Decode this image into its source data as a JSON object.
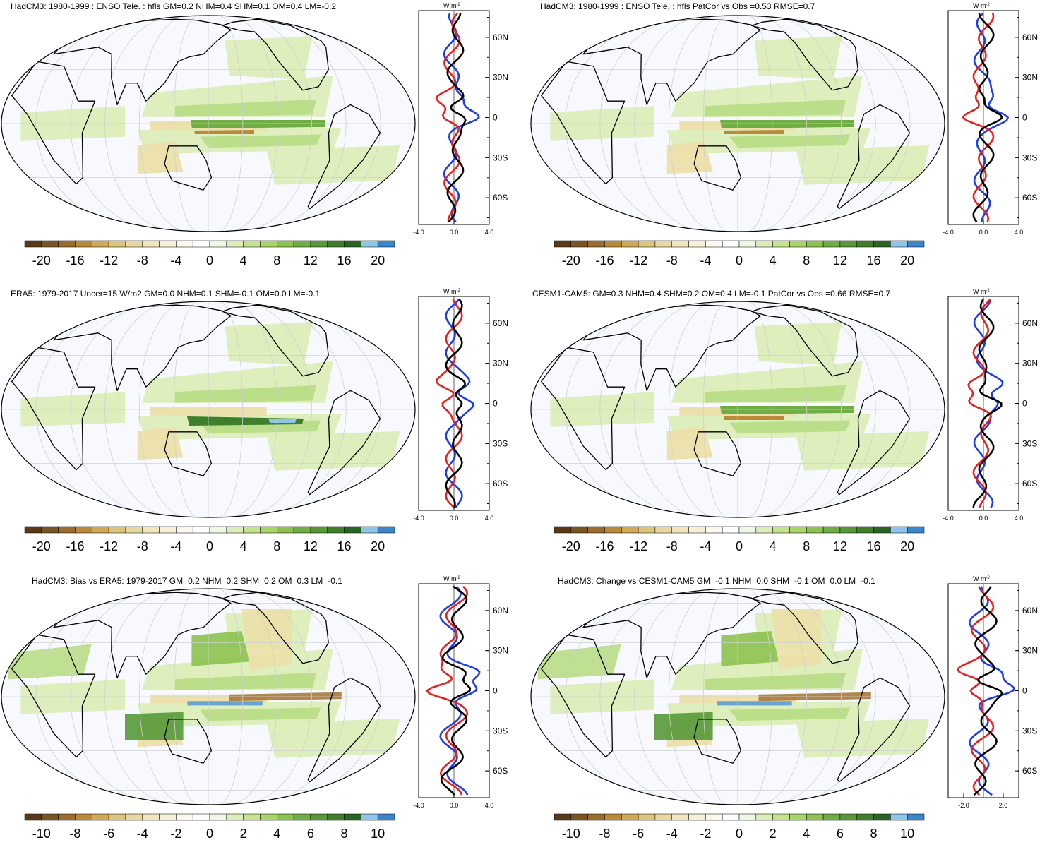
{
  "colorbar_colors": [
    "#5a3a16",
    "#7b5424",
    "#9b6c2e",
    "#b98a3a",
    "#cfa956",
    "#dcc47c",
    "#e8d7a0",
    "#f0e5bd",
    "#f6f0d8",
    "#fbf9ef",
    "#ffffff",
    "#f1f7e6",
    "#dcedb8",
    "#c5e38e",
    "#a9d46a",
    "#8cc24f",
    "#70ad44",
    "#579938",
    "#3f7f2c",
    "#2a6424",
    "#8ec6ea",
    "#3a86c8"
  ],
  "axis_unit": "W m",
  "axis_unit_sup": "-2",
  "lat_labels": [
    "60N",
    "30N",
    "0",
    "30S",
    "60S"
  ],
  "line_colors": {
    "series_a": "#1f3ee6",
    "series_b": "#e82020",
    "series_c": "#000000"
  },
  "panels": [
    {
      "title": "HadCM3: 1980-1999 : ENSO Tele. : hfls GM=0.2 NHM=0.4 SHM=0.1 OM=0.4 LM=-0.2",
      "cbar_labels": [
        "-20",
        "-16",
        "-12",
        "-8",
        "-4",
        "0",
        "4",
        "8",
        "12",
        "16",
        "20"
      ],
      "zonal_ticks": [
        "-4.0",
        "0.0",
        "4.0"
      ]
    },
    {
      "title": "HadCM3: 1980-1999 : ENSO Tele. : hfls PatCor vs Obs =0.53 RMSE=0.7",
      "cbar_labels": [
        "-20",
        "-16",
        "-12",
        "-8",
        "-4",
        "0",
        "4",
        "8",
        "12",
        "16",
        "20"
      ],
      "zonal_ticks": [
        "-4.0",
        "0.0",
        "4.0"
      ]
    },
    {
      "title": "ERA5: 1979-2017 Uncer=15 W/m2 GM=0.0 NHM=0.1 SHM=-0.1 OM=0.0 LM=-0.1",
      "cbar_labels": [
        "-20",
        "-16",
        "-12",
        "-8",
        "-4",
        "0",
        "4",
        "8",
        "12",
        "16",
        "20"
      ],
      "zonal_ticks": [
        "-4.0",
        "0.0",
        "4.0"
      ]
    },
    {
      "title": "CESM1-CAM5: GM=0.3 NHM=0.4 SHM=0.2 OM=0.4 LM=-0.1 PatCor vs Obs =0.66 RMSE=0.7",
      "cbar_labels": [
        "-20",
        "-16",
        "-12",
        "-8",
        "-4",
        "0",
        "4",
        "8",
        "12",
        "16",
        "20"
      ],
      "zonal_ticks": [
        "-4.0",
        "0.0",
        "4.0"
      ]
    },
    {
      "title": "HadCM3: Bias vs ERA5: 1979-2017 GM=0.2 NHM=0.2 SHM=0.2 OM=0.3 LM=-0.1",
      "cbar_labels": [
        "-10",
        "-8",
        "-6",
        "-4",
        "-2",
        "0",
        "2",
        "4",
        "6",
        "8",
        "10"
      ],
      "zonal_ticks": [
        "-4.0",
        "0.0",
        "4.0"
      ]
    },
    {
      "title": "HadCM3: Change vs CESM1-CAM5 GM=-0.1 NHM=0.0 SHM=-0.1 OM=0.0 LM=-0.1",
      "cbar_labels": [
        "-10",
        "-8",
        "-6",
        "-4",
        "-2",
        "0",
        "2",
        "4",
        "6",
        "8",
        "10"
      ],
      "zonal_ticks": [
        "-2.0",
        "2.0"
      ]
    }
  ]
}
